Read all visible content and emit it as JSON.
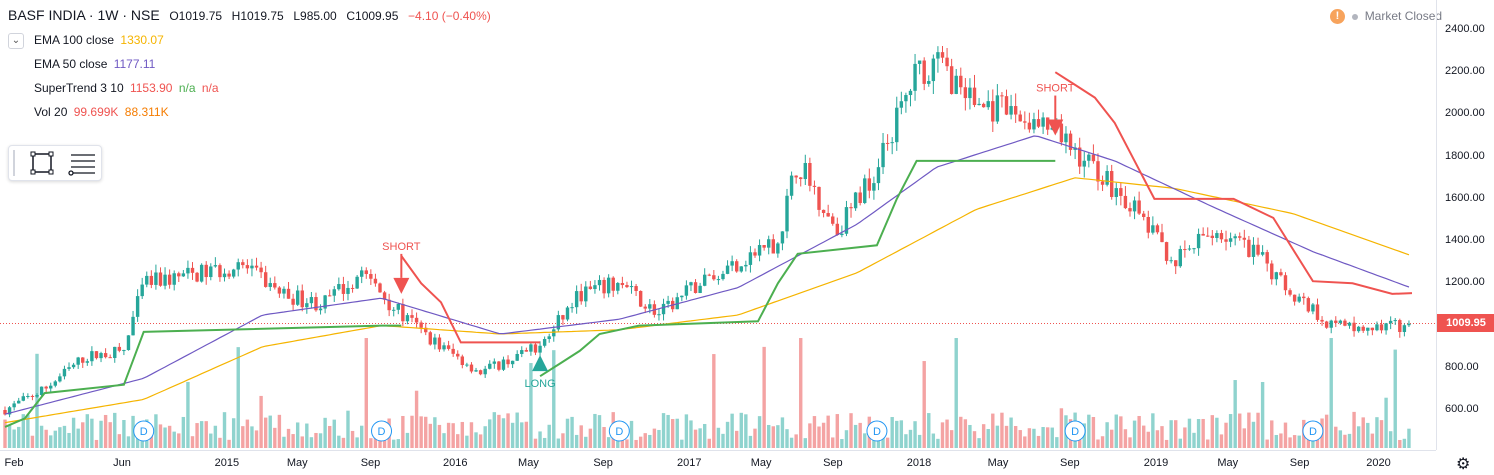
{
  "header": {
    "symbol": "BASF INDIA · 1W · NSE",
    "open": "O1019.75",
    "high": "H1019.75",
    "low": "L985.00",
    "close": "C1009.95",
    "change": "−4.10 (−0.40%)"
  },
  "legend": {
    "collapse_icon": "chevron-down-icon",
    "ema100": {
      "label": "EMA 100 close",
      "value": "1330.07",
      "color": "#f5b400"
    },
    "ema50": {
      "label": "EMA 50 close",
      "value": "1177.11",
      "color": "#6f59c3"
    },
    "supertrend": {
      "label": "SuperTrend 3 10",
      "value": "1153.90",
      "na1": "n/a",
      "na2": "n/a",
      "value_color": "#ef5350",
      "na_color": "#4caf50"
    },
    "vol": {
      "label": "Vol 20",
      "value": "99.699K",
      "value2": "88.311K",
      "color": "#ef5350"
    }
  },
  "toolbar": {
    "rect_icon": "rectangle-tool-icon",
    "menu_icon": "menu-lines-icon"
  },
  "status": {
    "warning_icon": "!",
    "text": "Market Closed"
  },
  "price_axis": {
    "ticks": [
      "2400.00",
      "2200.00",
      "2000.00",
      "1800.00",
      "1600.00",
      "1400.00",
      "1200.00",
      "1000.00",
      "800.00",
      "600.00"
    ],
    "current": "1009.95"
  },
  "time_axis": {
    "labels": [
      "Feb",
      "Jun",
      "2015",
      "May",
      "Sep",
      "2016",
      "May",
      "Sep",
      "2017",
      "May",
      "Sep",
      "2018",
      "May",
      "Sep",
      "2019",
      "May",
      "Sep",
      "2020"
    ]
  },
  "signals": {
    "short1": "SHORT",
    "long1": "LONG",
    "short2": "SHORT",
    "dividend": "D"
  },
  "settings_icon": "gear-icon",
  "colors": {
    "up": "#26a69a",
    "down": "#ef5350",
    "vol_up": "#8fd3ce",
    "vol_down": "#f4a3a3",
    "supertrend_up": "#4caf50",
    "supertrend_down": "#ef5350",
    "ema100": "#f5b400",
    "ema50": "#6f59c3"
  },
  "chart_data": {
    "type": "candlestick",
    "interval": "1W",
    "x_range": [
      "2014-02",
      "2020-01"
    ],
    "ylim": [
      420,
      2500
    ],
    "last_price": 1009.95,
    "close_anchors": [
      [
        "2014-02",
        600
      ],
      [
        "2014-04",
        700
      ],
      [
        "2014-06",
        850
      ],
      [
        "2014-08",
        880
      ],
      [
        "2014-09",
        1200
      ],
      [
        "2014-12",
        1250
      ],
      [
        "2015-02",
        1280
      ],
      [
        "2015-04",
        1150
      ],
      [
        "2015-06",
        1100
      ],
      [
        "2015-08",
        1250
      ],
      [
        "2015-10",
        1050
      ],
      [
        "2015-12",
        900
      ],
      [
        "2016-02",
        780
      ],
      [
        "2016-05",
        900
      ],
      [
        "2016-07",
        1150
      ],
      [
        "2016-09",
        1200
      ],
      [
        "2016-11",
        1050
      ],
      [
        "2017-01",
        1200
      ],
      [
        "2017-03",
        1300
      ],
      [
        "2017-05",
        1400
      ],
      [
        "2017-06",
        1780
      ],
      [
        "2017-08",
        1450
      ],
      [
        "2017-10",
        1750
      ],
      [
        "2017-12",
        2200
      ],
      [
        "2018-01",
        2250
      ],
      [
        "2018-03",
        2050
      ],
      [
        "2018-05",
        2000
      ],
      [
        "2018-07",
        1900
      ],
      [
        "2018-09",
        1750
      ],
      [
        "2018-11",
        1550
      ],
      [
        "2019-01",
        1300
      ],
      [
        "2019-03",
        1450
      ],
      [
        "2019-05",
        1350
      ],
      [
        "2019-07",
        1150
      ],
      [
        "2019-09",
        1000
      ],
      [
        "2019-12",
        990
      ],
      [
        "2020-01",
        1009.95
      ]
    ],
    "ema50_anchors": [
      [
        "2014-02",
        580
      ],
      [
        "2014-09",
        750
      ],
      [
        "2015-03",
        1050
      ],
      [
        "2015-09",
        1130
      ],
      [
        "2016-03",
        960
      ],
      [
        "2016-09",
        1030
      ],
      [
        "2017-03",
        1180
      ],
      [
        "2017-09",
        1480
      ],
      [
        "2018-01",
        1750
      ],
      [
        "2018-06",
        1900
      ],
      [
        "2018-10",
        1780
      ],
      [
        "2019-03",
        1560
      ],
      [
        "2019-08",
        1350
      ],
      [
        "2020-01",
        1177.11
      ]
    ],
    "ema100_anchors": [
      [
        "2014-02",
        540
      ],
      [
        "2014-09",
        650
      ],
      [
        "2015-03",
        900
      ],
      [
        "2015-09",
        1000
      ],
      [
        "2016-03",
        960
      ],
      [
        "2016-09",
        980
      ],
      [
        "2017-03",
        1050
      ],
      [
        "2017-09",
        1250
      ],
      [
        "2018-03",
        1550
      ],
      [
        "2018-08",
        1700
      ],
      [
        "2019-01",
        1650
      ],
      [
        "2019-07",
        1530
      ],
      [
        "2020-01",
        1330.07
      ]
    ],
    "supertrend_segments": [
      {
        "dir": "up",
        "points": [
          [
            "2014-02",
            520
          ],
          [
            "2014-03",
            560
          ],
          [
            "2014-04",
            680
          ],
          [
            "2014-08",
            720
          ],
          [
            "2014-09",
            970
          ],
          [
            "2015-09",
            1000
          ],
          [
            "2015-10",
            1000
          ]
        ]
      },
      {
        "dir": "down",
        "points": [
          [
            "2015-10",
            1330
          ],
          [
            "2015-11",
            1200
          ],
          [
            "2015-12",
            1110
          ],
          [
            "2016-01",
            920
          ],
          [
            "2016-05",
            920
          ]
        ]
      },
      {
        "dir": "up",
        "points": [
          [
            "2016-05",
            760
          ],
          [
            "2016-06",
            820
          ],
          [
            "2016-07",
            880
          ],
          [
            "2016-08",
            960
          ],
          [
            "2016-10",
            1000
          ],
          [
            "2017-04",
            1020
          ],
          [
            "2017-05",
            1200
          ],
          [
            "2017-06",
            1340
          ],
          [
            "2017-10",
            1380
          ],
          [
            "2017-11",
            1600
          ],
          [
            "2017-12",
            1780
          ],
          [
            "2018-07",
            1780
          ]
        ]
      },
      {
        "dir": "down",
        "points": [
          [
            "2018-07",
            2200
          ],
          [
            "2018-08",
            2140
          ],
          [
            "2018-09",
            2080
          ],
          [
            "2018-10",
            1960
          ],
          [
            "2018-12",
            1600
          ],
          [
            "2019-04",
            1600
          ],
          [
            "2019-06",
            1510
          ],
          [
            "2019-08",
            1210
          ],
          [
            "2019-10",
            1200
          ],
          [
            "2019-12",
            1150
          ],
          [
            "2020-01",
            1153.9
          ]
        ]
      }
    ],
    "signals": [
      {
        "type": "SHORT",
        "date": "2015-10"
      },
      {
        "type": "LONG",
        "date": "2016-05"
      },
      {
        "type": "SHORT",
        "date": "2018-07"
      }
    ],
    "dividends": [
      "2014-09",
      "2015-09",
      "2016-09",
      "2017-10",
      "2018-08",
      "2019-08"
    ],
    "volume_max": 99699,
    "volume_last": 88311
  }
}
